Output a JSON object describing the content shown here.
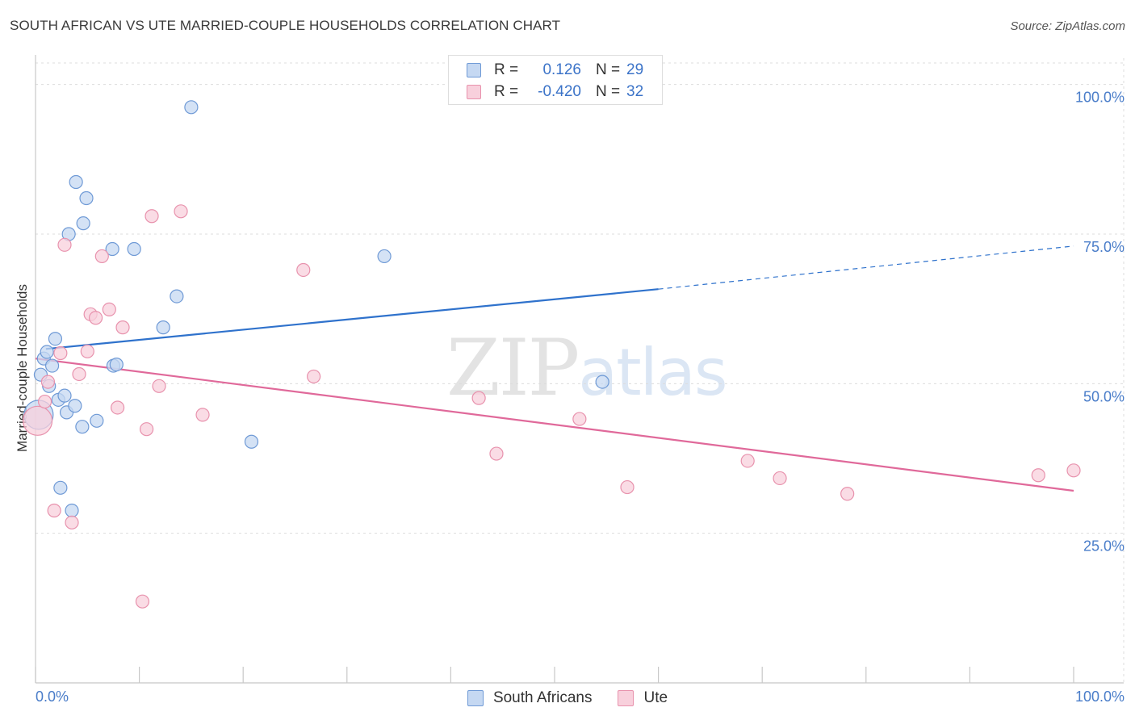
{
  "title": "SOUTH AFRICAN VS UTE MARRIED-COUPLE HOUSEHOLDS CORRELATION CHART",
  "source": "Source: ZipAtlas.com",
  "watermark": {
    "zip": "ZIP",
    "atlas": "atlas"
  },
  "legend": {
    "rows": [
      {
        "r_label": "R =",
        "r_value": "0.126",
        "n_label": "N =",
        "n_value": "29"
      },
      {
        "r_label": "R =",
        "r_value": "-0.420",
        "n_label": "N =",
        "n_value": "32"
      }
    ]
  },
  "bottom_legend": {
    "south_africans": "South Africans",
    "ute": "Ute"
  },
  "colors": {
    "blue_fill": "#c5d8f2",
    "blue_stroke": "#6f9ad6",
    "blue_line": "#2f72cc",
    "pink_fill": "#f8d0dc",
    "pink_stroke": "#e892ad",
    "pink_line": "#e0699a",
    "axis_text": "#4a7dc9",
    "grid": "#dcdcdc"
  },
  "chart_data": {
    "type": "scatter",
    "title": "SOUTH AFRICAN VS UTE MARRIED-COUPLE HOUSEHOLDS CORRELATION CHART",
    "xlabel": "",
    "ylabel": "Married-couple Households",
    "xlim": [
      0,
      100
    ],
    "ylim": [
      0,
      104
    ],
    "x_tick_labels": [
      "0.0%",
      "100.0%"
    ],
    "y_ticks": [
      25,
      50,
      75,
      100
    ],
    "y_tick_labels": [
      "25.0%",
      "50.0%",
      "75.0%",
      "100.0%"
    ],
    "grid": true,
    "legend_position": "top-center",
    "series": [
      {
        "name": "South Africans",
        "color": "blue",
        "points": [
          {
            "x": 0.3,
            "y": 44.8,
            "big": true
          },
          {
            "x": 0.5,
            "y": 51.5
          },
          {
            "x": 0.8,
            "y": 54.2
          },
          {
            "x": 1.1,
            "y": 55.3
          },
          {
            "x": 1.3,
            "y": 49.6
          },
          {
            "x": 1.6,
            "y": 53.0
          },
          {
            "x": 1.9,
            "y": 57.5
          },
          {
            "x": 2.2,
            "y": 47.3
          },
          {
            "x": 2.4,
            "y": 32.6
          },
          {
            "x": 2.8,
            "y": 48.0
          },
          {
            "x": 3.0,
            "y": 45.2
          },
          {
            "x": 3.2,
            "y": 75.0
          },
          {
            "x": 3.5,
            "y": 28.8
          },
          {
            "x": 3.8,
            "y": 46.3
          },
          {
            "x": 3.9,
            "y": 83.7
          },
          {
            "x": 4.5,
            "y": 42.8
          },
          {
            "x": 4.6,
            "y": 76.8
          },
          {
            "x": 4.9,
            "y": 81.0
          },
          {
            "x": 5.9,
            "y": 43.8
          },
          {
            "x": 7.4,
            "y": 72.5
          },
          {
            "x": 7.5,
            "y": 53.0
          },
          {
            "x": 7.8,
            "y": 53.2
          },
          {
            "x": 9.5,
            "y": 72.5
          },
          {
            "x": 12.3,
            "y": 59.4
          },
          {
            "x": 13.6,
            "y": 64.6
          },
          {
            "x": 15.0,
            "y": 96.2
          },
          {
            "x": 20.8,
            "y": 40.3
          },
          {
            "x": 33.6,
            "y": 71.3
          },
          {
            "x": 54.6,
            "y": 50.3
          }
        ],
        "trend": {
          "x0": 1.0,
          "y0": 55.8,
          "x1": 60.0,
          "y1": 65.8,
          "dash_to_x": 100,
          "dash_to_y": 73.0
        }
      },
      {
        "name": "Ute",
        "color": "pink",
        "points": [
          {
            "x": 0.2,
            "y": 43.8,
            "big": true
          },
          {
            "x": 0.9,
            "y": 47.0
          },
          {
            "x": 1.2,
            "y": 50.3
          },
          {
            "x": 1.8,
            "y": 28.8
          },
          {
            "x": 2.4,
            "y": 55.1
          },
          {
            "x": 2.8,
            "y": 73.2
          },
          {
            "x": 3.5,
            "y": 26.8
          },
          {
            "x": 4.2,
            "y": 51.6
          },
          {
            "x": 5.0,
            "y": 55.4
          },
          {
            "x": 5.3,
            "y": 61.6
          },
          {
            "x": 5.8,
            "y": 61.0
          },
          {
            "x": 6.4,
            "y": 71.3
          },
          {
            "x": 7.1,
            "y": 62.4
          },
          {
            "x": 7.9,
            "y": 46.0
          },
          {
            "x": 8.4,
            "y": 59.4
          },
          {
            "x": 10.3,
            "y": 13.6
          },
          {
            "x": 10.7,
            "y": 42.4
          },
          {
            "x": 11.2,
            "y": 78.0
          },
          {
            "x": 11.9,
            "y": 49.6
          },
          {
            "x": 14.0,
            "y": 78.8
          },
          {
            "x": 16.1,
            "y": 44.8
          },
          {
            "x": 25.8,
            "y": 69.0
          },
          {
            "x": 26.8,
            "y": 51.2
          },
          {
            "x": 42.7,
            "y": 47.6
          },
          {
            "x": 44.4,
            "y": 38.3
          },
          {
            "x": 52.4,
            "y": 44.1
          },
          {
            "x": 57.0,
            "y": 32.7
          },
          {
            "x": 68.6,
            "y": 37.1
          },
          {
            "x": 71.7,
            "y": 34.2
          },
          {
            "x": 78.2,
            "y": 31.6
          },
          {
            "x": 96.6,
            "y": 34.7
          },
          {
            "x": 100.0,
            "y": 35.5
          }
        ],
        "trend": {
          "x0": 0.0,
          "y0": 54.2,
          "x1": 100.0,
          "y1": 32.1
        }
      }
    ]
  }
}
